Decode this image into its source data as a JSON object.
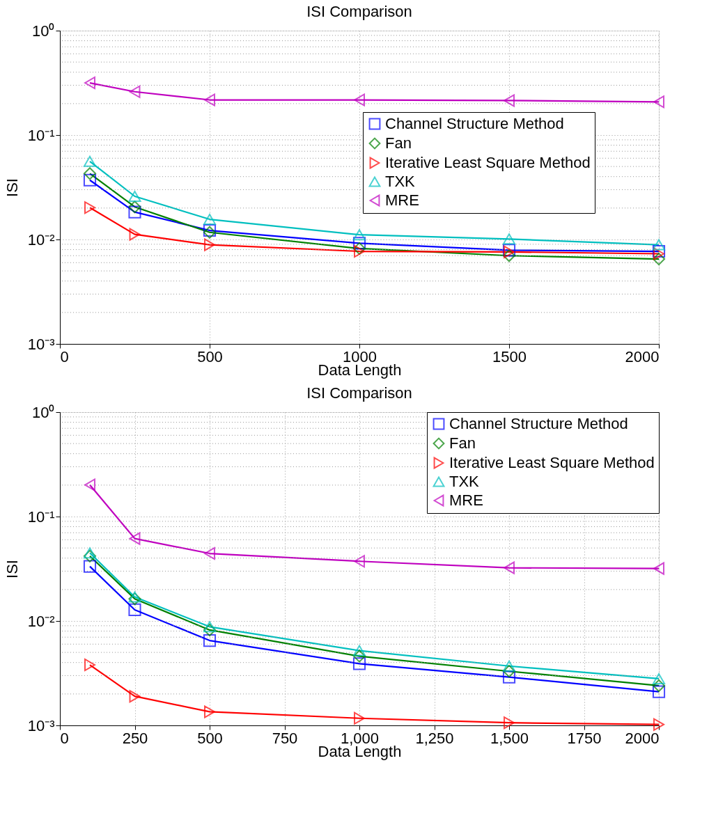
{
  "chart_data": [
    {
      "type": "line",
      "title": "ISI Comparison",
      "xlabel": "Data Length",
      "ylabel": "ISI",
      "log": "y",
      "grid": true,
      "legend": "right",
      "line_style": "solid",
      "xlim": [
        0,
        2000
      ],
      "xticks": [
        0,
        500,
        1000,
        1500,
        2000
      ],
      "ylim": [
        0.001,
        1
      ],
      "yticks": [
        {
          "value": 0.001,
          "label": "10⁻³"
        },
        {
          "value": 0.01,
          "label": "10⁻²"
        },
        {
          "value": 0.1,
          "label": "10⁻¹"
        },
        {
          "value": 1,
          "label": "10⁰"
        }
      ],
      "x": [
        100,
        250,
        500,
        1000,
        1500,
        2000
      ],
      "series": [
        {
          "name": "Channel Structure Method",
          "color": "#0000ff",
          "marker": "square",
          "values": [
            0.037,
            0.0183,
            0.0122,
            0.0092,
            0.0079,
            0.0077
          ]
        },
        {
          "name": "Fan",
          "color": "#008000",
          "marker": "diamond",
          "values": [
            0.0428,
            0.0205,
            0.0117,
            0.0082,
            0.007,
            0.0065
          ]
        },
        {
          "name": "Iterative Least Square Method",
          "color": "#ff0000",
          "marker": "triangle-right",
          "values": [
            0.0202,
            0.0112,
            0.0089,
            0.0077,
            0.0076,
            0.0073
          ]
        },
        {
          "name": "TXK",
          "color": "#00bfbf",
          "marker": "triangle-up",
          "values": [
            0.056,
            0.0259,
            0.0156,
            0.0111,
            0.0101,
            0.0089
          ]
        },
        {
          "name": "MRE",
          "color": "#bf00bf",
          "marker": "triangle-left",
          "values": [
            0.316,
            0.26,
            0.217,
            0.217,
            0.214,
            0.208
          ]
        }
      ]
    },
    {
      "type": "line",
      "title": "ISI Comparison",
      "xlabel": "Data Length",
      "ylabel": "ISI",
      "log": "y",
      "grid": true,
      "legend": "top right",
      "line_style": "solid",
      "xlim": [
        0,
        2000
      ],
      "xticks": [
        0,
        250,
        500,
        750,
        {
          "value": 1000,
          "label": "1,000"
        },
        {
          "value": 1250,
          "label": "1,250"
        },
        {
          "value": 1500,
          "label": "1,500"
        },
        1750,
        2000
      ],
      "ylim": [
        0.001,
        1
      ],
      "yticks": [
        {
          "value": 0.001,
          "label": "10⁻³"
        },
        {
          "value": 0.01,
          "label": "10⁻²"
        },
        {
          "value": 0.1,
          "label": "10⁻¹"
        },
        {
          "value": 1,
          "label": "10⁰"
        }
      ],
      "x": [
        100,
        250,
        500,
        1000,
        1500,
        2000
      ],
      "series": [
        {
          "name": "Channel Structure Method",
          "color": "#0000ff",
          "marker": "square",
          "values": [
            0.0333,
            0.0128,
            0.0065,
            0.0039,
            0.0029,
            0.0021
          ]
        },
        {
          "name": "Fan",
          "color": "#008000",
          "marker": "diamond",
          "values": [
            0.0418,
            0.0163,
            0.0082,
            0.0046,
            0.0033,
            0.0024
          ]
        },
        {
          "name": "Iterative Least Square Method",
          "color": "#ff0000",
          "marker": "triangle-right",
          "values": [
            0.0038,
            0.0019,
            0.00135,
            0.00117,
            0.00106,
            0.00102
          ]
        },
        {
          "name": "TXK",
          "color": "#00bfbf",
          "marker": "triangle-up",
          "values": [
            0.0449,
            0.017,
            0.0088,
            0.0052,
            0.0037,
            0.0028
          ]
        },
        {
          "name": "MRE",
          "color": "#bf00bf",
          "marker": "triangle-left",
          "values": [
            0.201,
            0.0615,
            0.0443,
            0.0373,
            0.0323,
            0.0318
          ]
        }
      ]
    }
  ]
}
